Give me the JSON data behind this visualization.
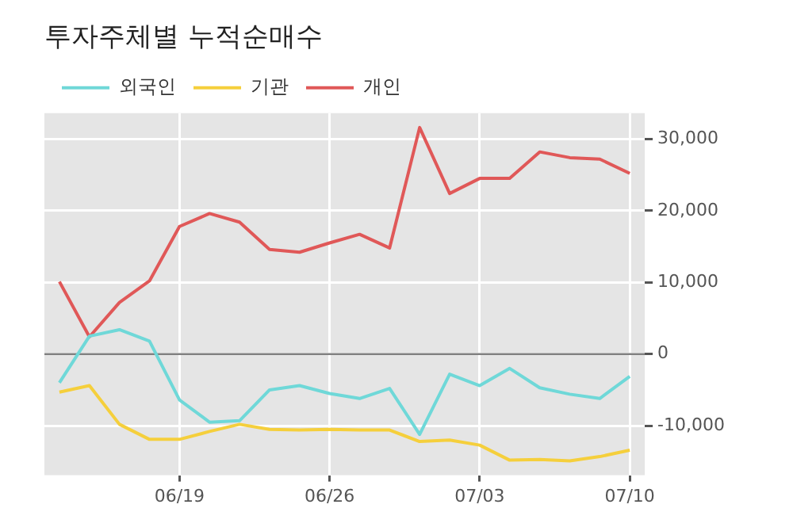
{
  "chart_data": {
    "type": "line",
    "title": "투자주체별 누적순매수",
    "categories": [
      null,
      null,
      null,
      null,
      "06/19",
      null,
      null,
      null,
      null,
      "06/26",
      null,
      null,
      null,
      null,
      "07/03",
      null,
      null,
      null,
      null,
      "07/10"
    ],
    "series": [
      {
        "name": "외국인",
        "color": "#6fd8d8",
        "values": [
          -4000,
          2500,
          3400,
          1800,
          -6400,
          -9500,
          -9300,
          -5000,
          -4400,
          -5500,
          -6200,
          -4800,
          -11200,
          -2800,
          -4400,
          -2000,
          -4700,
          -5600,
          -6200,
          -3100
        ]
      },
      {
        "name": "기관",
        "color": "#f5cf3c",
        "values": [
          -5300,
          -4400,
          -9800,
          -11900,
          -11900,
          -10800,
          -9800,
          -10500,
          -10600,
          -10500,
          -10600,
          -10600,
          -12200,
          -12000,
          -12700,
          -14800,
          -14700,
          -14900,
          -14300,
          -13400
        ]
      },
      {
        "name": "개인",
        "color": "#e05858",
        "values": [
          10100,
          2400,
          7200,
          10200,
          17800,
          19600,
          18400,
          14600,
          14200,
          15500,
          16700,
          14800,
          31600,
          22400,
          24500,
          24500,
          28200,
          27400,
          27200,
          25200
        ]
      }
    ],
    "ylim": [
      -16900,
      33600
    ],
    "yticks": [
      {
        "value": -10000,
        "label": "-10,000"
      },
      0,
      {
        "value": 10000,
        "label": "10,000"
      },
      {
        "value": 20000,
        "label": "20,000"
      },
      {
        "value": 30000,
        "label": "30,000"
      }
    ],
    "ref_lines": [
      {
        "axis": "y",
        "value": 0,
        "color": "#808080"
      }
    ],
    "grid": true,
    "legend": "top left",
    "marker": "none",
    "line_style": "solid"
  }
}
